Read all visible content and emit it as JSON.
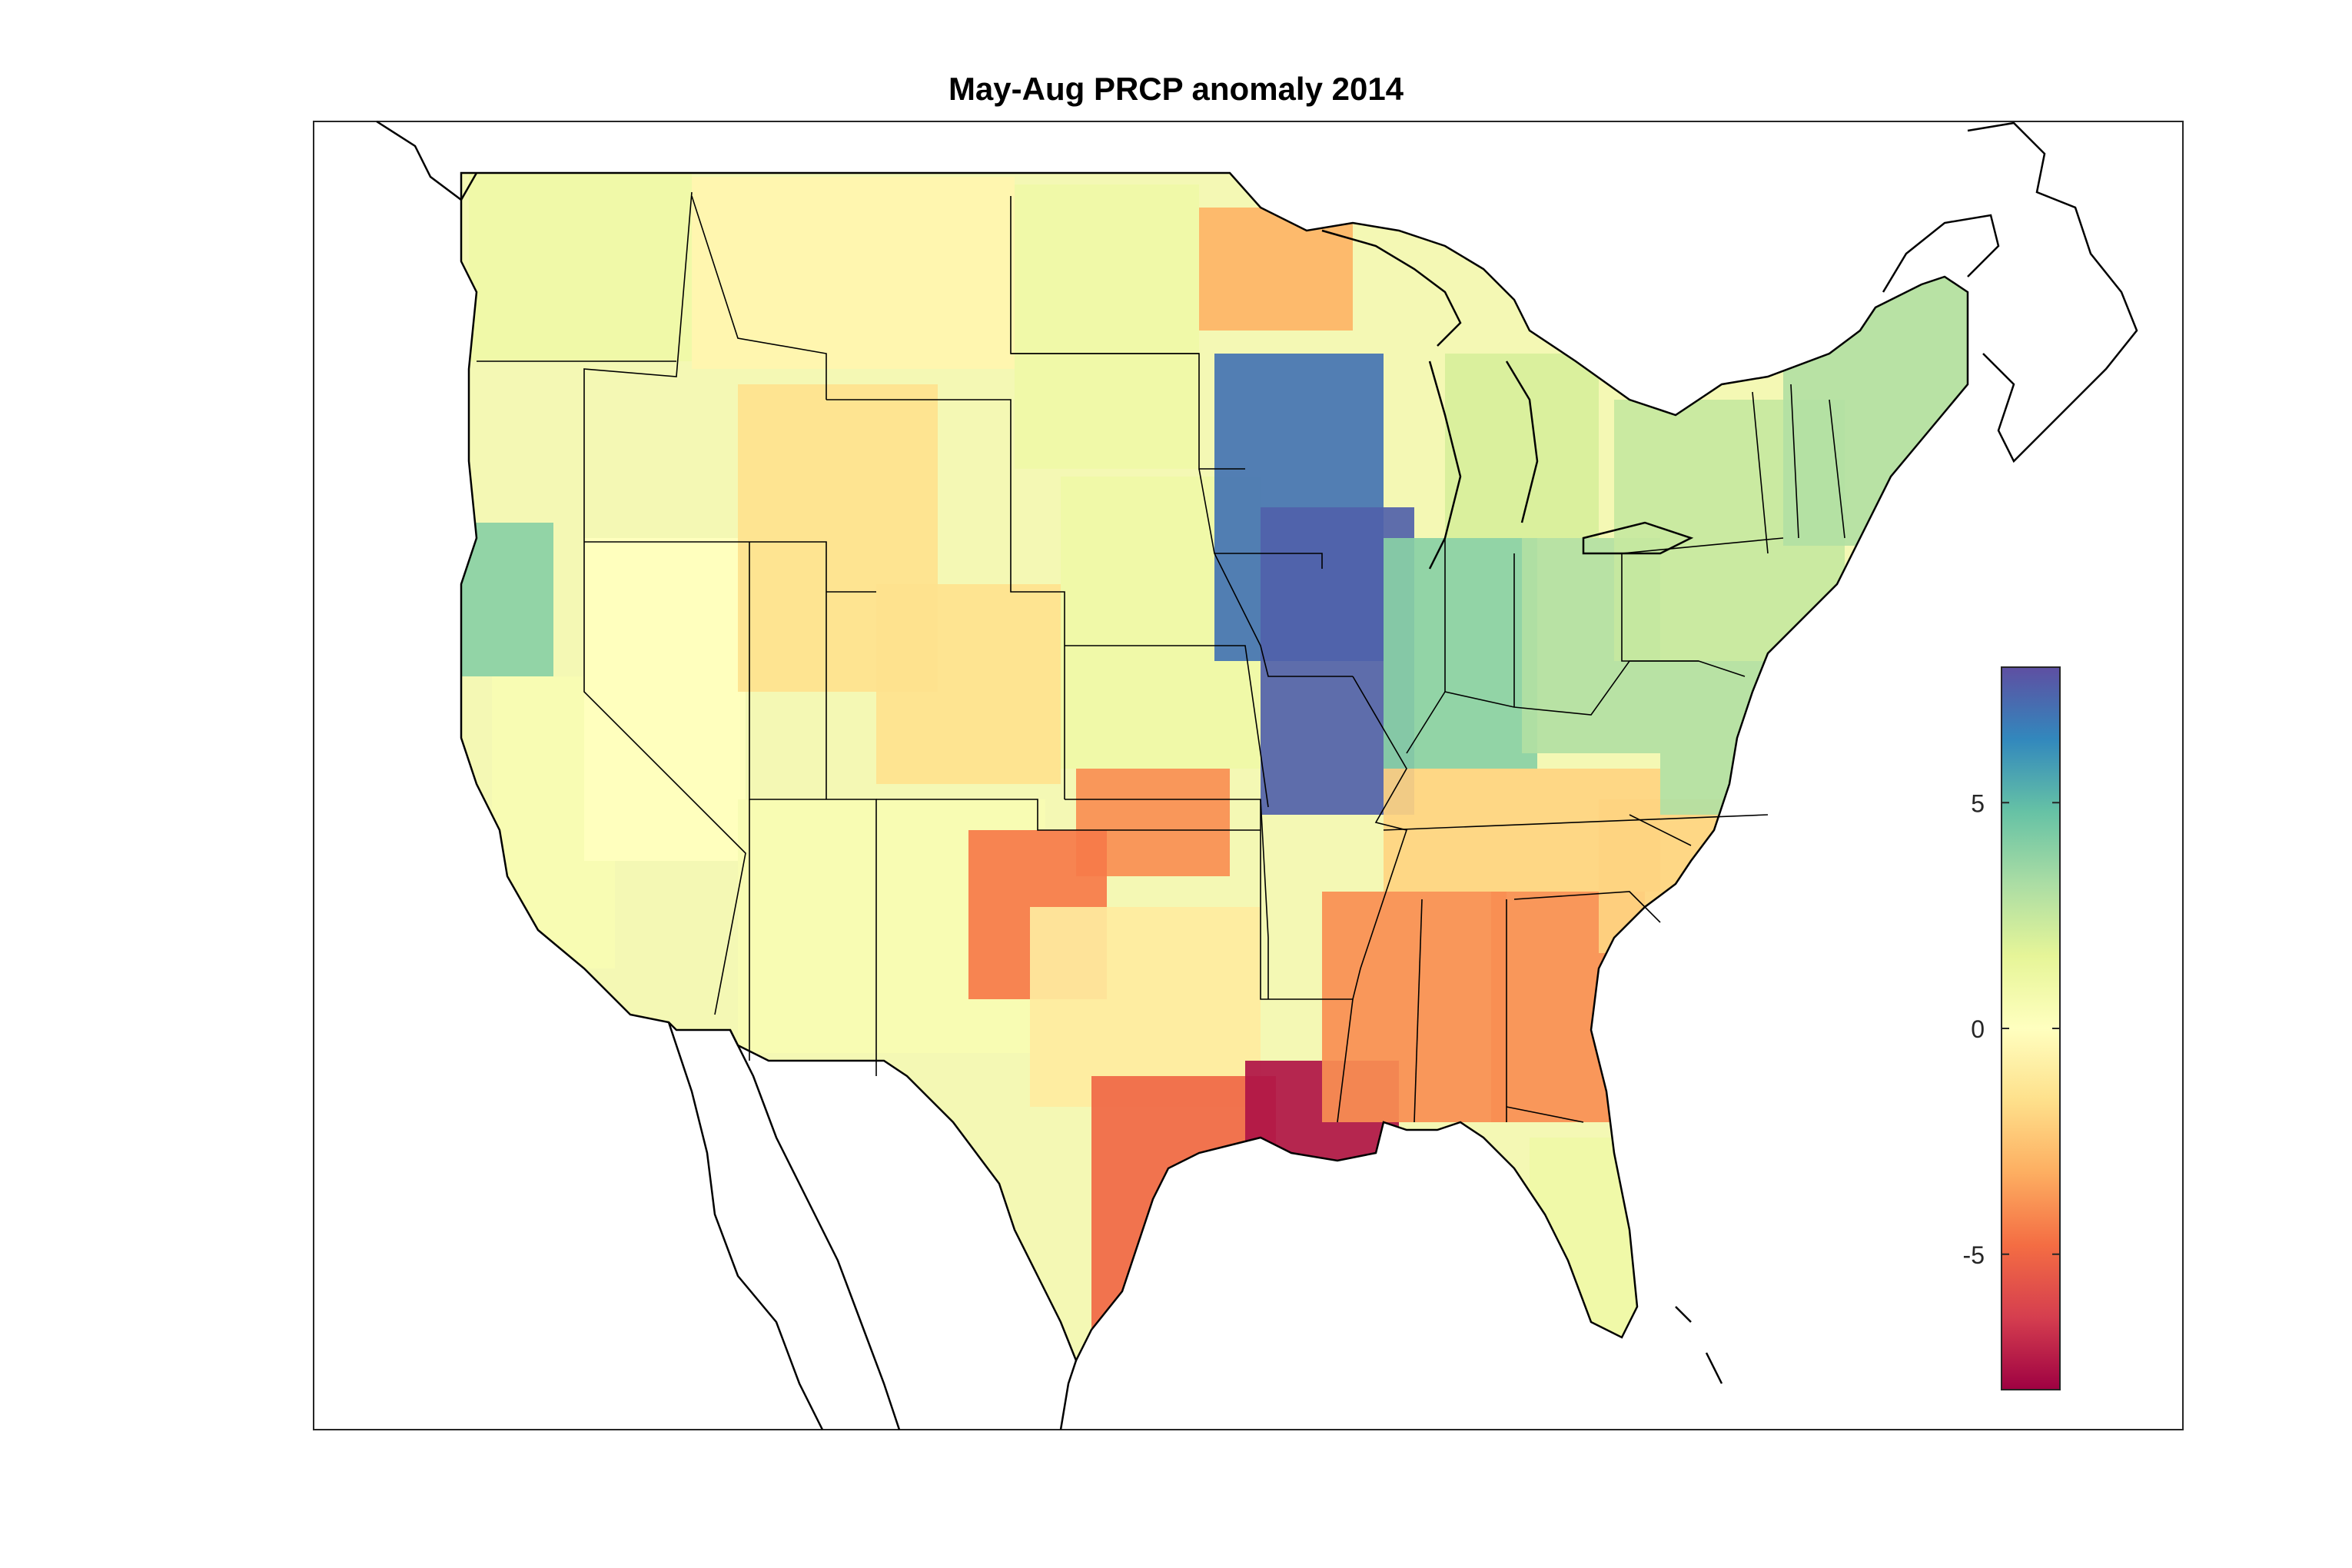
{
  "figure": {
    "title": "May-Aug PRCP anomaly 2014"
  },
  "colorbar": {
    "min": -8,
    "max": 8,
    "ticks": [
      {
        "value": 5,
        "label": "5"
      },
      {
        "value": 0,
        "label": "0"
      },
      {
        "value": -5,
        "label": "-5"
      }
    ],
    "colormap": "Spectral",
    "stops": [
      "#9e0142",
      "#d53e4f",
      "#f46d43",
      "#fdae61",
      "#fee08b",
      "#ffffbf",
      "#e6f598",
      "#abdda4",
      "#66c2a5",
      "#3288bd",
      "#5e4fa2"
    ]
  },
  "map_features": [
    "conterminous United States",
    "state boundaries",
    "coastlines"
  ],
  "anomaly_regions": [
    {
      "region": "Pacific Northwest",
      "value": 1
    },
    {
      "region": "Northern California coast",
      "value": 4
    },
    {
      "region": "California interior",
      "value": 0.5
    },
    {
      "region": "Nevada",
      "value": 0
    },
    {
      "region": "Idaho / Montana",
      "value": -0.5
    },
    {
      "region": "Wyoming / Utah",
      "value": -1.5
    },
    {
      "region": "Colorado",
      "value": -1.5
    },
    {
      "region": "Arizona / New Mexico",
      "value": 0.5
    },
    {
      "region": "Dakotas",
      "value": 1
    },
    {
      "region": "Nebraska / Kansas",
      "value": 1
    },
    {
      "region": "Northern Minnesota",
      "value": -3
    },
    {
      "region": "Iowa / Southern Minnesota",
      "value": 7
    },
    {
      "region": "Missouri (northeast)",
      "value": 7.5
    },
    {
      "region": "Illinois / Indiana",
      "value": 4
    },
    {
      "region": "Ohio",
      "value": 3
    },
    {
      "region": "Michigan",
      "value": 2
    },
    {
      "region": "Oklahoma (north)",
      "value": -4
    },
    {
      "region": "Texas Panhandle",
      "value": -4.5
    },
    {
      "region": "Central Texas",
      "value": -1
    },
    {
      "region": "South Texas coast",
      "value": -5
    },
    {
      "region": "Louisiana coast",
      "value": -7.5
    },
    {
      "region": "Mississippi / Alabama",
      "value": -4
    },
    {
      "region": "Georgia",
      "value": -4
    },
    {
      "region": "Tennessee / Kentucky",
      "value": -2
    },
    {
      "region": "Carolinas",
      "value": -2
    },
    {
      "region": "Florida peninsula",
      "value": 1
    },
    {
      "region": "Mid-Atlantic",
      "value": 3
    },
    {
      "region": "New York / Pennsylvania",
      "value": 2.5
    },
    {
      "region": "New England",
      "value": 3
    }
  ]
}
